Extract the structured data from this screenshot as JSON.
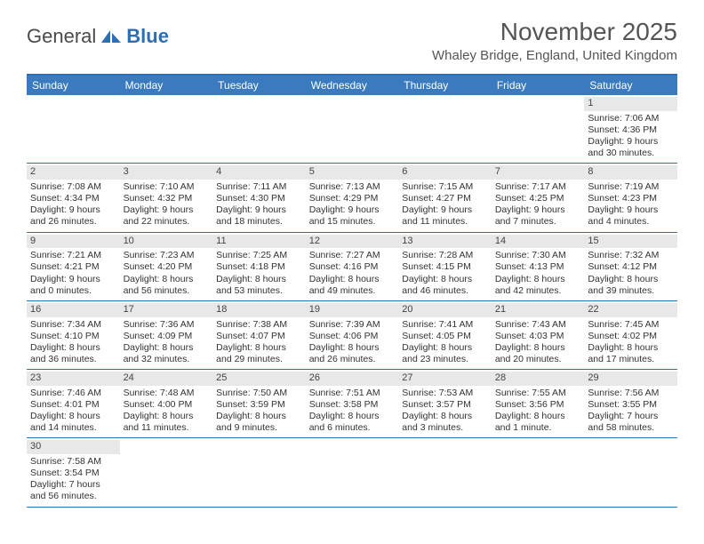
{
  "logo": {
    "text_a": "General",
    "text_b": "Blue"
  },
  "title": "November 2025",
  "location": "Whaley Bridge, England, United Kingdom",
  "colors": {
    "header_bg": "#3a7bbf",
    "border": "#2d6fb4",
    "daynum_bg": "#e8e8e8",
    "text": "#333333"
  },
  "day_names": [
    "Sunday",
    "Monday",
    "Tuesday",
    "Wednesday",
    "Thursday",
    "Friday",
    "Saturday"
  ],
  "weeks": [
    [
      null,
      null,
      null,
      null,
      null,
      null,
      {
        "n": "1",
        "sunrise": "7:06 AM",
        "sunset": "4:36 PM",
        "dl": "9 hours and 30 minutes."
      }
    ],
    [
      {
        "n": "2",
        "sunrise": "7:08 AM",
        "sunset": "4:34 PM",
        "dl": "9 hours and 26 minutes."
      },
      {
        "n": "3",
        "sunrise": "7:10 AM",
        "sunset": "4:32 PM",
        "dl": "9 hours and 22 minutes."
      },
      {
        "n": "4",
        "sunrise": "7:11 AM",
        "sunset": "4:30 PM",
        "dl": "9 hours and 18 minutes."
      },
      {
        "n": "5",
        "sunrise": "7:13 AM",
        "sunset": "4:29 PM",
        "dl": "9 hours and 15 minutes."
      },
      {
        "n": "6",
        "sunrise": "7:15 AM",
        "sunset": "4:27 PM",
        "dl": "9 hours and 11 minutes."
      },
      {
        "n": "7",
        "sunrise": "7:17 AM",
        "sunset": "4:25 PM",
        "dl": "9 hours and 7 minutes."
      },
      {
        "n": "8",
        "sunrise": "7:19 AM",
        "sunset": "4:23 PM",
        "dl": "9 hours and 4 minutes."
      }
    ],
    [
      {
        "n": "9",
        "sunrise": "7:21 AM",
        "sunset": "4:21 PM",
        "dl": "9 hours and 0 minutes."
      },
      {
        "n": "10",
        "sunrise": "7:23 AM",
        "sunset": "4:20 PM",
        "dl": "8 hours and 56 minutes."
      },
      {
        "n": "11",
        "sunrise": "7:25 AM",
        "sunset": "4:18 PM",
        "dl": "8 hours and 53 minutes."
      },
      {
        "n": "12",
        "sunrise": "7:27 AM",
        "sunset": "4:16 PM",
        "dl": "8 hours and 49 minutes."
      },
      {
        "n": "13",
        "sunrise": "7:28 AM",
        "sunset": "4:15 PM",
        "dl": "8 hours and 46 minutes."
      },
      {
        "n": "14",
        "sunrise": "7:30 AM",
        "sunset": "4:13 PM",
        "dl": "8 hours and 42 minutes."
      },
      {
        "n": "15",
        "sunrise": "7:32 AM",
        "sunset": "4:12 PM",
        "dl": "8 hours and 39 minutes."
      }
    ],
    [
      {
        "n": "16",
        "sunrise": "7:34 AM",
        "sunset": "4:10 PM",
        "dl": "8 hours and 36 minutes."
      },
      {
        "n": "17",
        "sunrise": "7:36 AM",
        "sunset": "4:09 PM",
        "dl": "8 hours and 32 minutes."
      },
      {
        "n": "18",
        "sunrise": "7:38 AM",
        "sunset": "4:07 PM",
        "dl": "8 hours and 29 minutes."
      },
      {
        "n": "19",
        "sunrise": "7:39 AM",
        "sunset": "4:06 PM",
        "dl": "8 hours and 26 minutes."
      },
      {
        "n": "20",
        "sunrise": "7:41 AM",
        "sunset": "4:05 PM",
        "dl": "8 hours and 23 minutes."
      },
      {
        "n": "21",
        "sunrise": "7:43 AM",
        "sunset": "4:03 PM",
        "dl": "8 hours and 20 minutes."
      },
      {
        "n": "22",
        "sunrise": "7:45 AM",
        "sunset": "4:02 PM",
        "dl": "8 hours and 17 minutes."
      }
    ],
    [
      {
        "n": "23",
        "sunrise": "7:46 AM",
        "sunset": "4:01 PM",
        "dl": "8 hours and 14 minutes."
      },
      {
        "n": "24",
        "sunrise": "7:48 AM",
        "sunset": "4:00 PM",
        "dl": "8 hours and 11 minutes."
      },
      {
        "n": "25",
        "sunrise": "7:50 AM",
        "sunset": "3:59 PM",
        "dl": "8 hours and 9 minutes."
      },
      {
        "n": "26",
        "sunrise": "7:51 AM",
        "sunset": "3:58 PM",
        "dl": "8 hours and 6 minutes."
      },
      {
        "n": "27",
        "sunrise": "7:53 AM",
        "sunset": "3:57 PM",
        "dl": "8 hours and 3 minutes."
      },
      {
        "n": "28",
        "sunrise": "7:55 AM",
        "sunset": "3:56 PM",
        "dl": "8 hours and 1 minute."
      },
      {
        "n": "29",
        "sunrise": "7:56 AM",
        "sunset": "3:55 PM",
        "dl": "7 hours and 58 minutes."
      }
    ],
    [
      {
        "n": "30",
        "sunrise": "7:58 AM",
        "sunset": "3:54 PM",
        "dl": "7 hours and 56 minutes."
      },
      null,
      null,
      null,
      null,
      null,
      null
    ]
  ],
  "labels": {
    "sunrise": "Sunrise: ",
    "sunset": "Sunset: ",
    "daylight": "Daylight: "
  }
}
